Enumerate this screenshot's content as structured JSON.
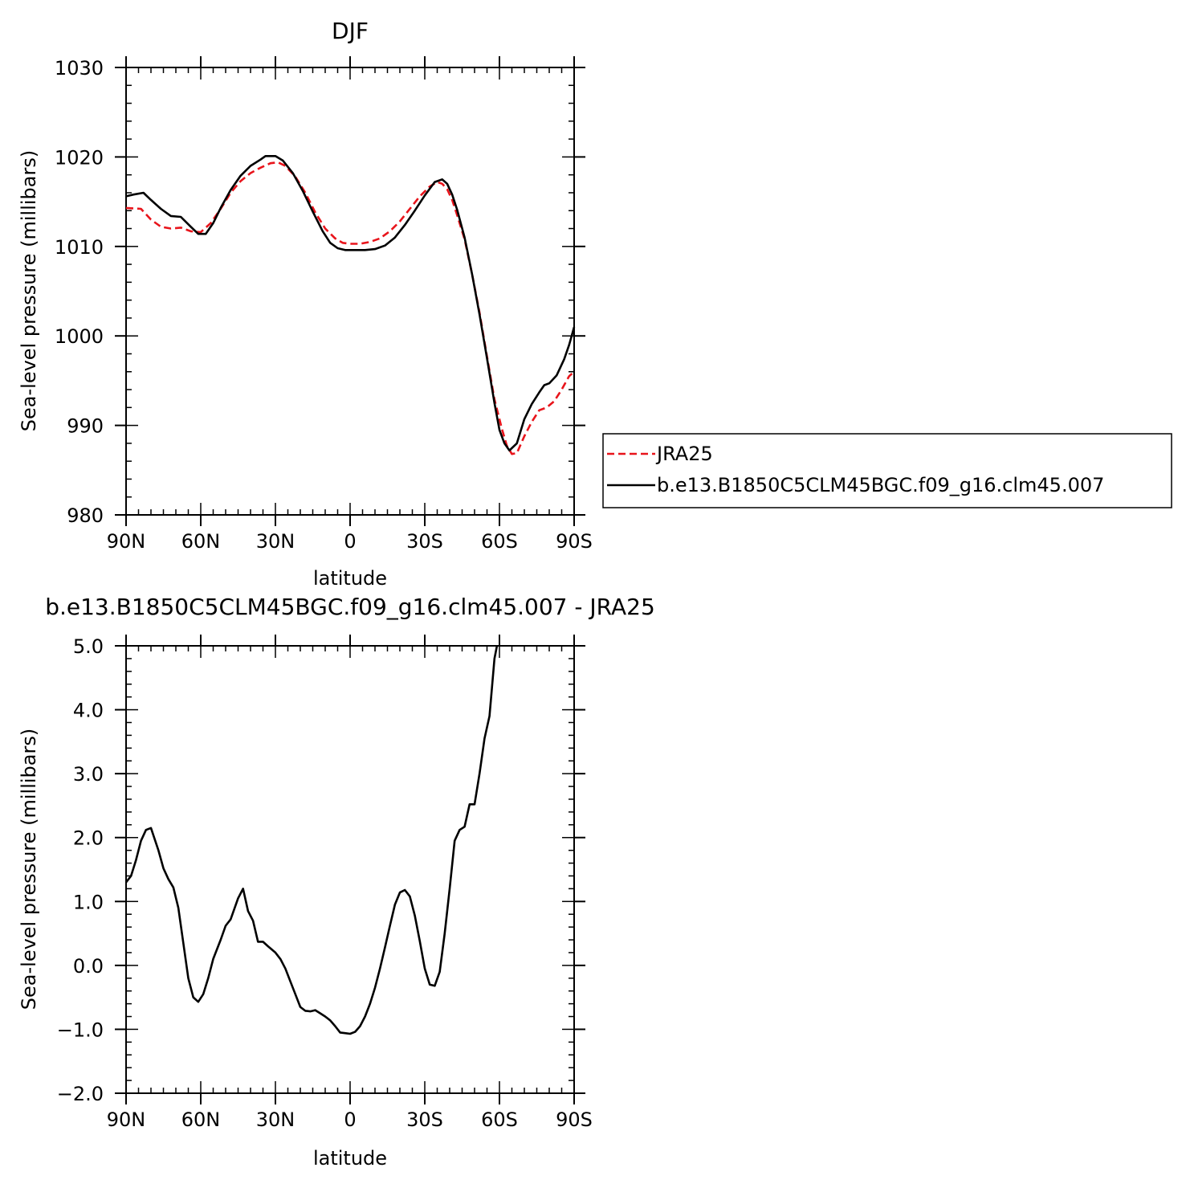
{
  "chart_data": [
    {
      "type": "line",
      "title": "DJF",
      "xlabel": "latitude",
      "ylabel": "Sea-level pressure (millibars)",
      "xlim": [
        90,
        -90
      ],
      "ylim": [
        980,
        1030
      ],
      "x_ticks": [
        90,
        60,
        30,
        0,
        -30,
        -60,
        -90
      ],
      "x_tick_labels": [
        "90N",
        "60N",
        "30N",
        "0",
        "30S",
        "60S",
        "90S"
      ],
      "y_ticks": [
        980,
        990,
        1000,
        1010,
        1020,
        1030
      ],
      "y_tick_labels": [
        "980",
        "990",
        "1000",
        "1010",
        "1020",
        "1030"
      ],
      "legend_position": "right",
      "series": [
        {
          "name": "JRA25",
          "color": "#e8141b",
          "dash": "dashed",
          "points": [
            [
              90,
              1014.3
            ],
            [
              84,
              1014.2
            ],
            [
              80,
              1013.0
            ],
            [
              76,
              1012.2
            ],
            [
              72,
              1012.0
            ],
            [
              68,
              1012.1
            ],
            [
              64,
              1011.7
            ],
            [
              60,
              1011.6
            ],
            [
              56,
              1012.6
            ],
            [
              52,
              1014.2
            ],
            [
              48,
              1016.0
            ],
            [
              44,
              1017.3
            ],
            [
              40,
              1018.2
            ],
            [
              36,
              1018.8
            ],
            [
              32,
              1019.3
            ],
            [
              29,
              1019.4
            ],
            [
              26,
              1019.0
            ],
            [
              22,
              1017.8
            ],
            [
              18,
              1016.0
            ],
            [
              14,
              1013.8
            ],
            [
              10,
              1012.0
            ],
            [
              6,
              1010.9
            ],
            [
              3,
              1010.4
            ],
            [
              0,
              1010.3
            ],
            [
              -4,
              1010.3
            ],
            [
              -8,
              1010.5
            ],
            [
              -12,
              1010.9
            ],
            [
              -16,
              1011.7
            ],
            [
              -20,
              1012.8
            ],
            [
              -24,
              1014.2
            ],
            [
              -28,
              1015.6
            ],
            [
              -32,
              1016.7
            ],
            [
              -35,
              1017.2
            ],
            [
              -37,
              1017.0
            ],
            [
              -39,
              1016.4
            ],
            [
              -41,
              1015.2
            ],
            [
              -43,
              1013.5
            ],
            [
              -46,
              1010.8
            ],
            [
              -49,
              1006.9
            ],
            [
              -52,
              1002.6
            ],
            [
              -55,
              997.7
            ],
            [
              -58,
              992.9
            ],
            [
              -61,
              989.6
            ],
            [
              -63,
              987.7
            ],
            [
              -65,
              986.8
            ],
            [
              -67,
              986.9
            ],
            [
              -70,
              988.8
            ],
            [
              -73,
              990.4
            ],
            [
              -76,
              991.7
            ],
            [
              -79,
              992.0
            ],
            [
              -82,
              992.7
            ],
            [
              -85,
              994.0
            ],
            [
              -88,
              995.5
            ],
            [
              -90,
              996.0
            ]
          ]
        },
        {
          "name": "b.e13.B1850C5CLM45BGC.f09_g16.clm45.007",
          "color": "#000000",
          "dash": "solid",
          "points": [
            [
              90,
              1015.6
            ],
            [
              87,
              1015.8
            ],
            [
              83,
              1016.0
            ],
            [
              80,
              1015.2
            ],
            [
              76,
              1014.2
            ],
            [
              72,
              1013.4
            ],
            [
              68,
              1013.3
            ],
            [
              64,
              1012.2
            ],
            [
              61,
              1011.4
            ],
            [
              58,
              1011.4
            ],
            [
              55,
              1012.6
            ],
            [
              52,
              1014.3
            ],
            [
              48,
              1016.3
            ],
            [
              44,
              1017.9
            ],
            [
              40,
              1019.0
            ],
            [
              36,
              1019.7
            ],
            [
              34,
              1020.1
            ],
            [
              30,
              1020.1
            ],
            [
              27,
              1019.6
            ],
            [
              23,
              1018.2
            ],
            [
              19,
              1016.2
            ],
            [
              15,
              1013.9
            ],
            [
              11,
              1011.7
            ],
            [
              8,
              1010.4
            ],
            [
              5,
              1009.8
            ],
            [
              2,
              1009.6
            ],
            [
              -2,
              1009.6
            ],
            [
              -6,
              1009.6
            ],
            [
              -10,
              1009.7
            ],
            [
              -14,
              1010.1
            ],
            [
              -18,
              1011.0
            ],
            [
              -22,
              1012.4
            ],
            [
              -26,
              1014.0
            ],
            [
              -30,
              1015.7
            ],
            [
              -34,
              1017.2
            ],
            [
              -37,
              1017.5
            ],
            [
              -39,
              1017.0
            ],
            [
              -41,
              1015.8
            ],
            [
              -43,
              1014.1
            ],
            [
              -46,
              1011.0
            ],
            [
              -49,
              1006.9
            ],
            [
              -52,
              1002.4
            ],
            [
              -55,
              997.5
            ],
            [
              -58,
              992.5
            ],
            [
              -60,
              989.5
            ],
            [
              -62,
              988.0
            ],
            [
              -64,
              987.2
            ],
            [
              -67,
              988.0
            ],
            [
              -70,
              990.7
            ],
            [
              -73,
              992.4
            ],
            [
              -76,
              993.7
            ],
            [
              -78,
              994.5
            ],
            [
              -80,
              994.7
            ],
            [
              -83,
              995.6
            ],
            [
              -86,
              997.4
            ],
            [
              -88,
              999.0
            ],
            [
              -90,
              1001.0
            ]
          ]
        }
      ]
    },
    {
      "type": "line",
      "title": "b.e13.B1850C5CLM45BGC.f09_g16.clm45.007 - JRA25",
      "xlabel": "latitude",
      "ylabel": "Sea-level pressure (millibars)",
      "xlim": [
        90,
        -90
      ],
      "ylim": [
        -2.0,
        5.0
      ],
      "x_ticks": [
        90,
        60,
        30,
        0,
        -30,
        -60,
        -90
      ],
      "x_tick_labels": [
        "90N",
        "60N",
        "30N",
        "0",
        "30S",
        "60S",
        "90S"
      ],
      "y_ticks": [
        -2,
        -1,
        0,
        1,
        2,
        3,
        4,
        5
      ],
      "y_tick_labels": [
        "−2.0",
        "−1.0",
        "0.0",
        "1.0",
        "2.0",
        "3.0",
        "4.0",
        "5.0"
      ],
      "series": [
        {
          "color": "#000000",
          "dash": "solid",
          "points": [
            [
              90,
              1.3
            ],
            [
              88,
              1.4
            ],
            [
              86,
              1.65
            ],
            [
              84,
              1.95
            ],
            [
              82,
              2.12
            ],
            [
              80,
              2.15
            ],
            [
              77,
              1.8
            ],
            [
              75,
              1.52
            ],
            [
              73,
              1.35
            ],
            [
              71,
              1.22
            ],
            [
              69,
              0.9
            ],
            [
              67,
              0.35
            ],
            [
              65,
              -0.2
            ],
            [
              63,
              -0.5
            ],
            [
              61,
              -0.57
            ],
            [
              59,
              -0.45
            ],
            [
              57,
              -0.2
            ],
            [
              55,
              0.1
            ],
            [
              52,
              0.4
            ],
            [
              50,
              0.62
            ],
            [
              48,
              0.72
            ],
            [
              45,
              1.05
            ],
            [
              43,
              1.2
            ],
            [
              41,
              0.85
            ],
            [
              39,
              0.7
            ],
            [
              37,
              0.37
            ],
            [
              35,
              0.37
            ],
            [
              33,
              0.3
            ],
            [
              30,
              0.2
            ],
            [
              28,
              0.1
            ],
            [
              26,
              -0.05
            ],
            [
              24,
              -0.25
            ],
            [
              22,
              -0.45
            ],
            [
              20,
              -0.65
            ],
            [
              18,
              -0.71
            ],
            [
              16,
              -0.72
            ],
            [
              14,
              -0.7
            ],
            [
              12,
              -0.75
            ],
            [
              10,
              -0.8
            ],
            [
              8,
              -0.86
            ],
            [
              6,
              -0.95
            ],
            [
              4,
              -1.05
            ],
            [
              2,
              -1.06
            ],
            [
              0,
              -1.07
            ],
            [
              -2,
              -1.04
            ],
            [
              -4,
              -0.95
            ],
            [
              -6,
              -0.8
            ],
            [
              -8,
              -0.6
            ],
            [
              -10,
              -0.35
            ],
            [
              -12,
              -0.05
            ],
            [
              -14,
              0.28
            ],
            [
              -16,
              0.62
            ],
            [
              -18,
              0.95
            ],
            [
              -20,
              1.14
            ],
            [
              -22,
              1.18
            ],
            [
              -24,
              1.08
            ],
            [
              -26,
              0.78
            ],
            [
              -28,
              0.38
            ],
            [
              -30,
              -0.05
            ],
            [
              -32,
              -0.3
            ],
            [
              -34,
              -0.32
            ],
            [
              -36,
              -0.1
            ],
            [
              -38,
              0.5
            ],
            [
              -40,
              1.2
            ],
            [
              -42,
              1.95
            ],
            [
              -44,
              2.12
            ],
            [
              -46,
              2.17
            ],
            [
              -48,
              2.52
            ],
            [
              -50,
              2.52
            ],
            [
              -52,
              3.0
            ],
            [
              -54,
              3.55
            ],
            [
              -56,
              3.9
            ],
            [
              -58,
              4.8
            ],
            [
              -59,
              5.0
            ]
          ]
        }
      ]
    }
  ]
}
